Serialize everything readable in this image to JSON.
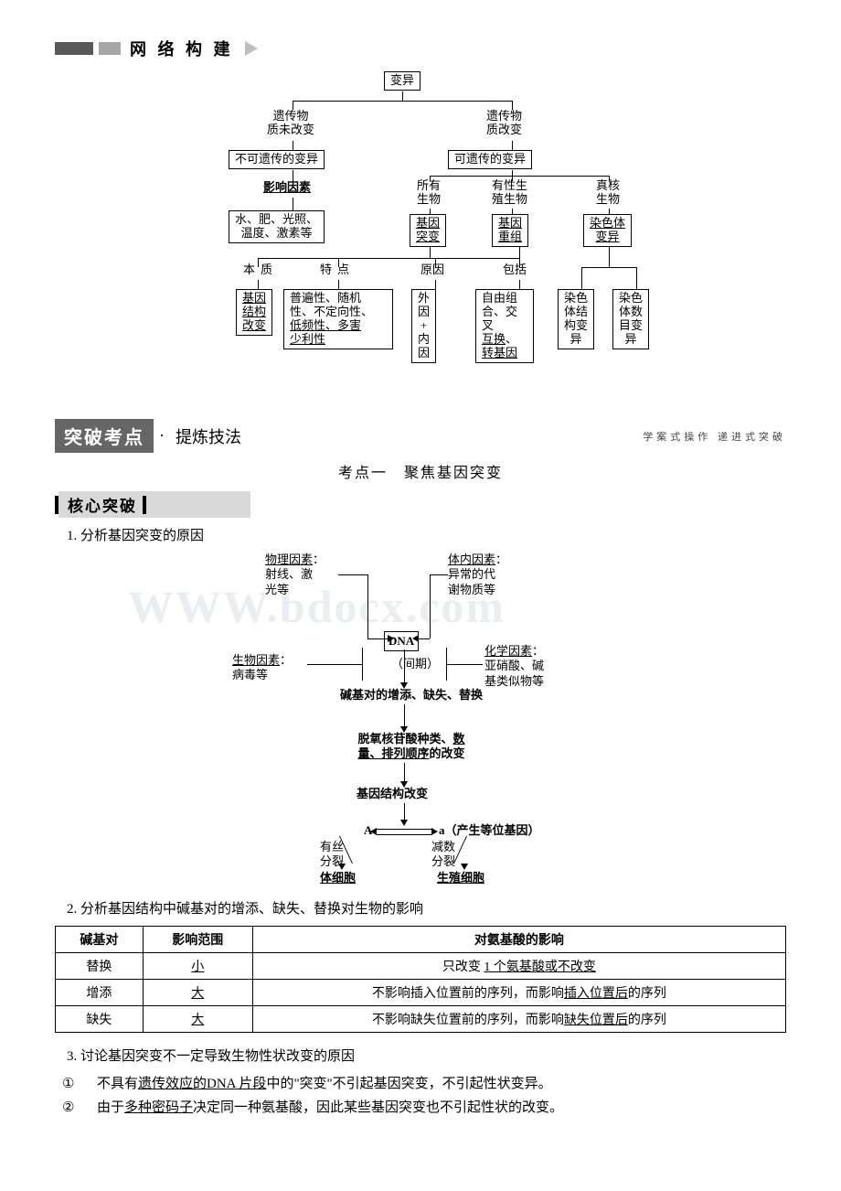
{
  "section1": {
    "title": "网 络 构 建"
  },
  "diagram1": {
    "root": "变异",
    "left_label": "遗传物\n质未改变",
    "right_label": "遗传物\n质改变",
    "nonheritable": "不可遗传的变异",
    "heritable": "可遗传的变异",
    "factors_label": "影响因素",
    "scope_labels": {
      "all": "所有\n生物",
      "sexual": "有性生\n殖生物",
      "eukaryote": "真核\n生物"
    },
    "env_factors": "水、肥、光照、\n温度、激素等",
    "gene_mutation": "基因\n突变",
    "gene_recombination": "基因\n重组",
    "chromosome_variation": "染色体\n变异",
    "row_labels": {
      "essence": "本质",
      "features": "特点",
      "cause": "原因",
      "include": "包括"
    },
    "essence_box": "基因\n结构\n改变",
    "features_box": "普遍性、随机\n性、不定向性、\n低频性、多害\n少利性",
    "cause_box": "外\n因\n+\n内\n因",
    "include_box": "自由组\n合、交叉\n互换、\n转基因",
    "chrom_struct": "染色\n体结\n构变\n异",
    "chrom_num": "染色\n体数\n目变\n异"
  },
  "breakthrough": {
    "dark": "突破考点",
    "dot": "·",
    "light": "提炼技法",
    "caption": "学案式操作  递进式突破"
  },
  "topic1": "考点一　聚焦基因突变",
  "core_header": "核心突破",
  "list": {
    "item1": "分析基因突变的原因",
    "item2": "分析基因结构中碱基对的增添、缺失、替换对生物的影响",
    "item3": "讨论基因突变不一定导致生物性状改变的原因"
  },
  "diagram2": {
    "physical": "物理因素：\n射线、激\n光等",
    "internal": "体内因素：\n异常的代\n谢物质等",
    "biological": "生物因素：\n病毒等",
    "chemical": "化学因素：\n亚硝酸、碱\n基类似物等",
    "dna": "DNA",
    "interphase": "（间期）",
    "base_change": "碱基对的增添、缺失、替换",
    "nucleotide": "脱氧核苷酸种类、数\n量、排列顺序的改变",
    "gene_struct": "基因结构改变",
    "A": "A",
    "a": "a（产生等位基因）",
    "mitosis": "有丝\n分裂",
    "meiosis": "减数\n分裂",
    "somatic": "体细胞",
    "germ": "生殖细胞"
  },
  "table": {
    "headers": [
      "碱基对",
      "影响范围",
      "对氨基酸的影响"
    ],
    "rows": [
      [
        "替换",
        "小",
        "只改变 1 个氨基酸或不改变"
      ],
      [
        "增添",
        "大",
        "不影响插入位置前的序列，而影响插入位置后的序列"
      ],
      [
        "缺失",
        "大",
        "不影响缺失位置前的序列，而影响缺失位置后的序列"
      ]
    ]
  },
  "sublist3": {
    "i1": "不具有遗传效应的DNA 片段中的\"突变\"不引起基因突变，不引起性状变异。",
    "i2": "由于多种密码子决定同一种氨基酸，因此某些基因突变也不引起性状的改变。"
  },
  "watermark": "WWW.bdocx.com"
}
